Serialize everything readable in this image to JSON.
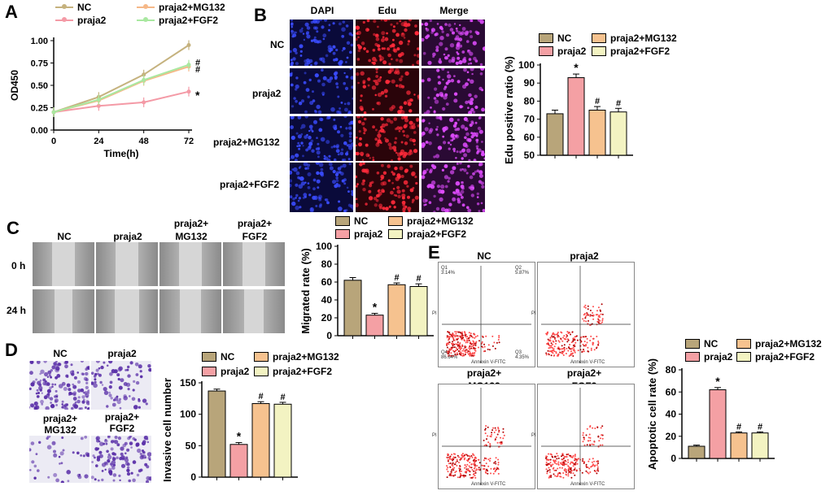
{
  "panels": {
    "A": "A",
    "B": "B",
    "C": "C",
    "D": "D",
    "E": "E"
  },
  "colors": {
    "NC": "#b8a57a",
    "praja2": "#f4a0a4",
    "mg132": "#f6c28f",
    "fgf2": "#f3f3c2",
    "lineNC": "#c5b27e",
    "linePraja2": "#f49aa6",
    "lineMG": "#f5b888",
    "lineFGF": "#a9e8a0"
  },
  "legend": {
    "nc": "NC",
    "praja2": "praja2",
    "mg132": "praja2+MG132",
    "fgf2": "praja2+FGF2"
  },
  "panelB": {
    "cols": [
      "DAPI",
      "Edu",
      "Merge"
    ],
    "rows": [
      "NC",
      "praja2",
      "praja2+MG132",
      "praja2+FGF2"
    ]
  },
  "panelC": {
    "cols": [
      "NC",
      "praja2",
      "praja2+\nMG132",
      "praja2+\nFGF2"
    ],
    "col_l1": [
      "NC",
      "praja2",
      "praja2+",
      "praja2+"
    ],
    "col_l2": [
      "",
      "",
      "MG132",
      "FGF2"
    ],
    "rows": [
      "0 h",
      "24 h"
    ]
  },
  "panelD": {
    "tl": "NC",
    "tr": "praja2",
    "bl1": "praja2+",
    "bl2": "MG132",
    "br1": "praja2+",
    "br2": "FGF2"
  },
  "panelE": {
    "tl": "NC",
    "tr": "praja2",
    "bl1": "praja2+",
    "bl2": "MG132",
    "br1": "praja2+",
    "br2": "FGF2",
    "nc_q1": "Q1\n3.14%",
    "nc_q2": "Q2\n5.87%",
    "nc_q3": "Q3\n4.35%",
    "nc_q4": "Q4\n86.64%",
    "xaxis": "Annexin V-FITC",
    "yaxis": "PI"
  },
  "chart_data": [
    {
      "id": "A",
      "type": "line",
      "xlabel": "Time(h)",
      "ylabel": "OD450",
      "x": [
        0,
        24,
        48,
        72
      ],
      "xticks": [
        "0",
        "24",
        "48",
        "72"
      ],
      "yticks": [
        "0.00",
        "0.25",
        "0.50",
        "0.75",
        "1.00"
      ],
      "ylim": [
        0,
        1.0
      ],
      "series": [
        {
          "name": "NC",
          "values": [
            0.2,
            0.37,
            0.62,
            0.95
          ]
        },
        {
          "name": "praja2",
          "values": [
            0.2,
            0.27,
            0.31,
            0.43
          ]
        },
        {
          "name": "praja2+MG132",
          "values": [
            0.2,
            0.33,
            0.55,
            0.71
          ]
        },
        {
          "name": "praja2+FGF2",
          "values": [
            0.2,
            0.34,
            0.56,
            0.73
          ]
        }
      ],
      "annotations": [
        "#",
        "#",
        "*"
      ]
    },
    {
      "id": "B",
      "type": "bar",
      "ylabel": "Edu positive ratio (%)",
      "categories": [
        "NC",
        "praja2",
        "praja2+MG132",
        "praja2+FGF2"
      ],
      "values": [
        73,
        93,
        75,
        74
      ],
      "errors": [
        2,
        2,
        2,
        2
      ],
      "yticks": [
        "50",
        "60",
        "70",
        "80",
        "90",
        "100"
      ],
      "ylim": [
        50,
        100
      ],
      "marks": [
        "",
        "*",
        "#",
        "#"
      ]
    },
    {
      "id": "C",
      "type": "bar",
      "ylabel": "Migrated rate (%)",
      "categories": [
        "NC",
        "praja2",
        "praja2+MG132",
        "praja2+FGF2"
      ],
      "values": [
        62,
        23,
        57,
        55
      ],
      "errors": [
        3,
        2,
        2,
        3
      ],
      "yticks": [
        "0",
        "20",
        "40",
        "60",
        "80",
        "100"
      ],
      "ylim": [
        0,
        100
      ],
      "marks": [
        "",
        "*",
        "#",
        "#"
      ]
    },
    {
      "id": "D",
      "type": "bar",
      "ylabel": "Invasive cell number",
      "categories": [
        "NC",
        "praja2",
        "praja2+MG132",
        "praja2+FGF2"
      ],
      "values": [
        137,
        52,
        117,
        116
      ],
      "errors": [
        3,
        3,
        3,
        3
      ],
      "yticks": [
        "0",
        "50",
        "100",
        "150"
      ],
      "ylim": [
        0,
        150
      ],
      "marks": [
        "",
        "*",
        "#",
        "#"
      ]
    },
    {
      "id": "E",
      "type": "bar",
      "ylabel": "Apoptotic cell rate (%)",
      "categories": [
        "NC",
        "praja2",
        "praja2+MG132",
        "praja2+FGF2"
      ],
      "values": [
        11,
        62,
        23,
        23
      ],
      "errors": [
        1,
        2,
        1,
        1
      ],
      "yticks": [
        "0",
        "20",
        "40",
        "60",
        "80"
      ],
      "ylim": [
        0,
        80
      ],
      "marks": [
        "",
        "*",
        "#",
        "#"
      ]
    }
  ]
}
